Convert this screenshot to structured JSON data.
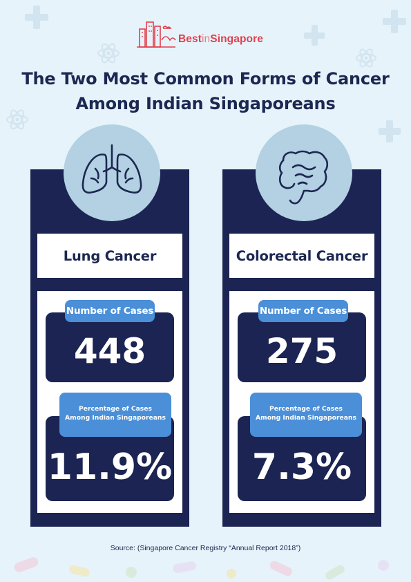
{
  "brand": {
    "name_prefix": "Best",
    "name_mid": "in",
    "name_suffix": "Singapore",
    "color": "#e33e4c"
  },
  "title": {
    "line1": "The Two Most Common Forms of Cancer",
    "line2": "Among Indian Singaporeans"
  },
  "cancers": [
    {
      "name": "Lung Cancer",
      "icon": "lungs-icon",
      "cases_label": "Number of Cases",
      "cases_value": "448",
      "pct_label_line1": "Percentage of Cases",
      "pct_label_line2": "Among Indian Singaporeans",
      "pct_value": "11.9%"
    },
    {
      "name": "Colorectal Cancer",
      "icon": "intestine-icon",
      "cases_label": "Number of Cases",
      "cases_value": "275",
      "pct_label_line1": "Percentage of Cases",
      "pct_label_line2": "Among Indian Singaporeans",
      "pct_value": "7.3%"
    }
  ],
  "source": "Source: (Singapore Cancer Registry “Annual Report 2018”)",
  "colors": {
    "background": "#e6f3fa",
    "navy": "#1b2452",
    "accent_blue": "#4a8fd8",
    "icon_circle": "#b3d1e2"
  }
}
